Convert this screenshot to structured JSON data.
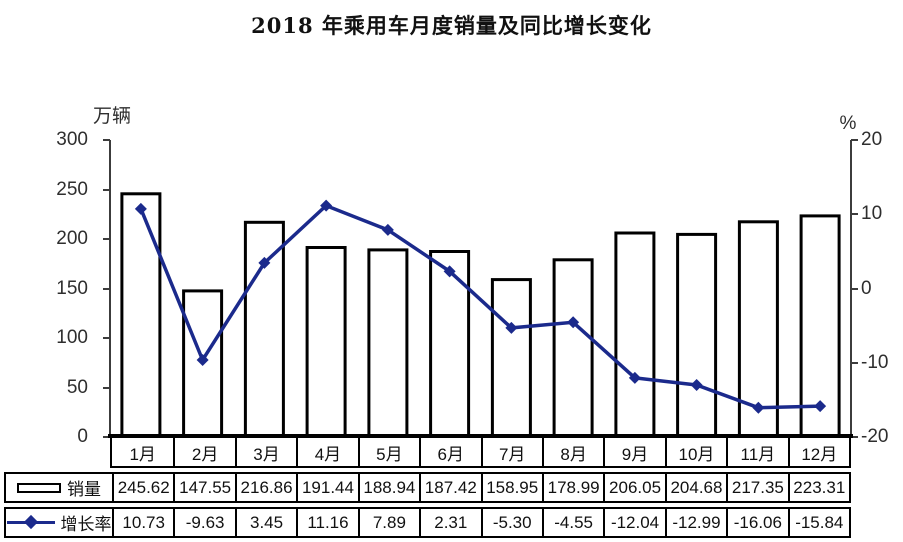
{
  "title": "2018 年乘用车月度销量及同比增长变化",
  "left_axis": {
    "label": "万辆",
    "ticks": [
      300,
      250,
      200,
      150,
      100,
      50,
      0
    ]
  },
  "right_axis": {
    "label": "%",
    "ticks": [
      20,
      10,
      0,
      -10,
      -20
    ]
  },
  "chart_data": {
    "type": "bar+line",
    "title": "2018 年乘用车月度销量及同比增长变化",
    "categories": [
      "1月",
      "2月",
      "3月",
      "4月",
      "5月",
      "6月",
      "7月",
      "8月",
      "9月",
      "10月",
      "11月",
      "12月"
    ],
    "series": [
      {
        "name": "销量",
        "type": "bar",
        "axis": "left",
        "values": [
          245.62,
          147.55,
          216.86,
          191.44,
          188.94,
          187.42,
          158.95,
          178.99,
          206.05,
          204.68,
          217.35,
          223.31
        ]
      },
      {
        "name": "增长率",
        "type": "line",
        "axis": "right",
        "values": [
          10.73,
          -9.63,
          3.45,
          11.16,
          7.89,
          2.31,
          -5.3,
          -4.55,
          -12.04,
          -12.99,
          -16.06,
          -15.84
        ]
      }
    ],
    "ylabel_left": "万辆",
    "ylabel_right": "%",
    "ylim_left": [
      0,
      300
    ],
    "ylim_right": [
      -20,
      20
    ],
    "grid": false,
    "legend_position": "table-left",
    "colors": {
      "bar_fill": "#ffffff",
      "bar_border": "#000000",
      "line": "#1b2a8c",
      "axis": "#3c3c3c"
    }
  }
}
